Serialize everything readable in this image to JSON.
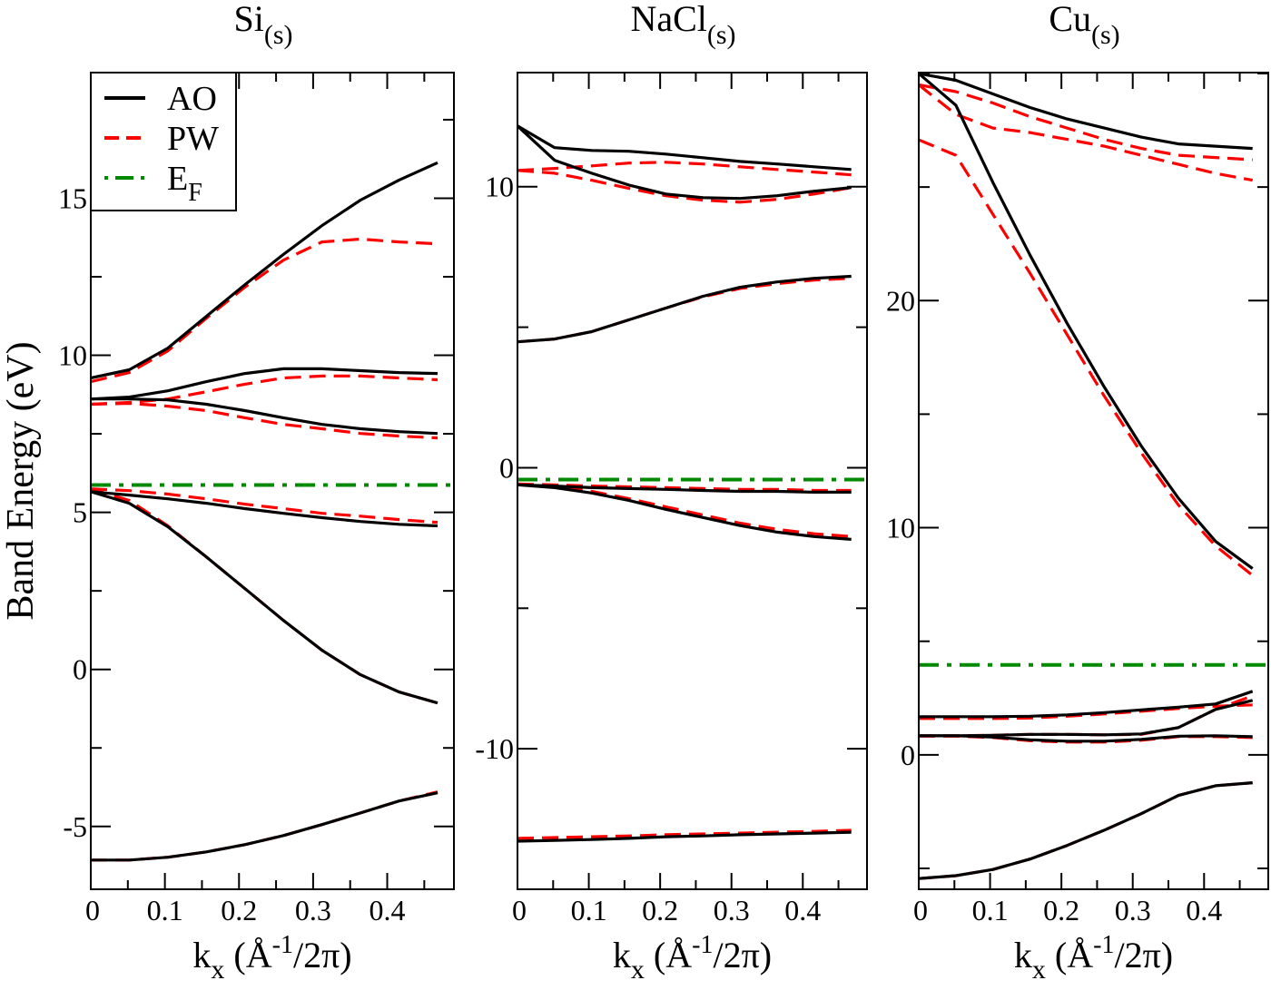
{
  "legend": {
    "entries": [
      {
        "label": "AO",
        "color": "#000000",
        "style": "solid"
      },
      {
        "label": "PW",
        "color": "#ff0000",
        "style": "dashed"
      },
      {
        "label": "E",
        "sub": "F",
        "color": "#008a00",
        "style": "dash-dot-dot"
      }
    ],
    "placement": "top-left of first panel"
  },
  "ylabel": "Band Energy (eV)",
  "chart_data": [
    {
      "type": "line",
      "title": "Si",
      "title_sub": "(s)",
      "xlabel": {
        "main": "k",
        "sub": "x",
        "pre": " (Å",
        "sup": "-1",
        "post": "/2π)"
      },
      "xlim": [
        0,
        0.49
      ],
      "ylim": [
        -7,
        19
      ],
      "xticks": [
        0,
        0.1,
        0.2,
        0.3,
        0.4
      ],
      "xtick_labels": [
        "0",
        "0.1",
        "0.2",
        "0.3",
        "0.4"
      ],
      "xminor": 0.05,
      "yticks": [
        -5,
        0,
        5,
        10,
        15
      ],
      "ytick_labels": [
        "-5",
        "0",
        "5",
        "10",
        "15"
      ],
      "yminor": 2.5,
      "x": [
        0,
        0.052,
        0.104,
        0.156,
        0.208,
        0.26,
        0.312,
        0.364,
        0.416,
        0.468
      ],
      "fermi": 5.87,
      "series": [
        {
          "name": "AO",
          "bands": [
            [
              9.28,
              9.54,
              10.23,
              11.24,
              12.25,
              13.21,
              14.13,
              14.94,
              15.58,
              16.13
            ],
            [
              8.61,
              8.67,
              8.87,
              9.16,
              9.42,
              9.57,
              9.57,
              9.51,
              9.45,
              9.42
            ],
            [
              8.61,
              8.61,
              8.58,
              8.44,
              8.24,
              8.01,
              7.8,
              7.66,
              7.57,
              7.51
            ],
            [
              5.66,
              5.55,
              5.43,
              5.29,
              5.12,
              4.97,
              4.83,
              4.71,
              4.62,
              4.57
            ],
            [
              5.66,
              5.29,
              4.54,
              3.58,
              2.57,
              1.56,
              0.61,
              -0.17,
              -0.72,
              -1.07
            ],
            [
              -6.07,
              -6.07,
              -5.98,
              -5.81,
              -5.58,
              -5.29,
              -4.94,
              -4.57,
              -4.19,
              -3.93
            ]
          ]
        },
        {
          "name": "PW",
          "bands": [
            [
              9.16,
              9.45,
              10.14,
              11.18,
              12.17,
              13.03,
              13.61,
              13.7,
              13.61,
              13.55
            ],
            [
              8.44,
              8.5,
              8.61,
              8.84,
              9.08,
              9.28,
              9.34,
              9.34,
              9.28,
              9.22
            ],
            [
              8.44,
              8.47,
              8.38,
              8.24,
              8.01,
              7.8,
              7.66,
              7.51,
              7.43,
              7.37
            ],
            [
              5.75,
              5.69,
              5.58,
              5.43,
              5.26,
              5.12,
              4.97,
              4.88,
              4.77,
              4.68
            ],
            [
              5.75,
              5.38,
              4.57,
              3.58,
              2.57,
              1.56,
              0.61,
              -0.17,
              -0.72,
              -1.07
            ],
            [
              -6.07,
              -6.07,
              -5.98,
              -5.81,
              -5.58,
              -5.29,
              -4.94,
              -4.57,
              -4.19,
              -3.9
            ]
          ]
        }
      ]
    },
    {
      "type": "line",
      "title": "NaCl",
      "title_sub": "(s)",
      "xlabel": {
        "main": "k",
        "sub": "x",
        "pre": " (Å",
        "sup": "-1",
        "post": "/2π)"
      },
      "xlim": [
        0,
        0.49
      ],
      "ylim": [
        -15,
        14.06
      ],
      "xticks": [
        0,
        0.1,
        0.2,
        0.3,
        0.4
      ],
      "xtick_labels": [
        "0",
        "0.1",
        "0.2",
        "0.3",
        "0.4"
      ],
      "xminor": 0.05,
      "yticks": [
        -10,
        0,
        10
      ],
      "ytick_labels": [
        "-10",
        "0",
        "10"
      ],
      "yminor": 5,
      "x": [
        0,
        0.052,
        0.104,
        0.156,
        0.208,
        0.26,
        0.312,
        0.364,
        0.416,
        0.468
      ],
      "fermi": -0.42,
      "series": [
        {
          "name": "AO",
          "bands": [
            [
              12.16,
              11.39,
              11.29,
              11.26,
              11.16,
              11.03,
              10.9,
              10.81,
              10.71,
              10.61
            ],
            [
              12.16,
              10.94,
              10.48,
              10.06,
              9.74,
              9.61,
              9.58,
              9.68,
              9.84,
              9.97
            ],
            [
              4.48,
              4.58,
              4.84,
              5.26,
              5.68,
              6.1,
              6.42,
              6.61,
              6.74,
              6.81
            ],
            [
              -0.61,
              -0.65,
              -0.71,
              -0.74,
              -0.77,
              -0.81,
              -0.84,
              -0.84,
              -0.87,
              -0.87
            ],
            [
              -0.61,
              -0.71,
              -0.9,
              -1.16,
              -1.48,
              -1.77,
              -2.06,
              -2.29,
              -2.45,
              -2.55
            ],
            [
              -13.29,
              -13.26,
              -13.23,
              -13.19,
              -13.13,
              -13.1,
              -13.06,
              -13.03,
              -13.0,
              -12.97
            ]
          ]
        },
        {
          "name": "PW",
          "bands": [
            [
              10.58,
              10.65,
              10.74,
              10.84,
              10.87,
              10.81,
              10.71,
              10.61,
              10.52,
              10.42
            ],
            [
              10.58,
              10.48,
              10.23,
              9.94,
              9.68,
              9.52,
              9.45,
              9.55,
              9.74,
              9.97
            ],
            [
              4.48,
              4.58,
              4.84,
              5.26,
              5.68,
              6.08,
              6.38,
              6.55,
              6.68,
              6.74
            ],
            [
              -0.58,
              -0.61,
              -0.65,
              -0.68,
              -0.71,
              -0.74,
              -0.77,
              -0.77,
              -0.81,
              -0.81
            ],
            [
              -0.58,
              -0.68,
              -0.84,
              -1.1,
              -1.39,
              -1.68,
              -1.97,
              -2.19,
              -2.35,
              -2.45
            ],
            [
              -13.19,
              -13.16,
              -13.13,
              -13.1,
              -13.06,
              -13.03,
              -13.0,
              -12.97,
              -12.94,
              -12.9
            ]
          ]
        }
      ]
    },
    {
      "type": "line",
      "title": "Cu",
      "title_sub": "(s)",
      "xlabel": {
        "main": "k",
        "sub": "x",
        "pre": " (Å",
        "sup": "-1",
        "post": "/2π)"
      },
      "xlim": [
        0,
        0.49
      ],
      "ylim": [
        -5.92,
        30.04
      ],
      "xticks": [
        0,
        0.1,
        0.2,
        0.3,
        0.4
      ],
      "xtick_labels": [
        "0",
        "0.1",
        "0.2",
        "0.3",
        "0.4"
      ],
      "xminor": 0.05,
      "yticks": [
        0,
        10,
        20
      ],
      "ytick_labels": [
        "0",
        "10",
        "20"
      ],
      "yminor": 5,
      "x": [
        0,
        0.052,
        0.104,
        0.156,
        0.208,
        0.26,
        0.312,
        0.364,
        0.416,
        0.468
      ],
      "fermi": 3.96,
      "series": [
        {
          "name": "AO",
          "bands": [
            [
              30.0,
              29.7,
              29.1,
              28.5,
              28.0,
              27.6,
              27.2,
              26.9,
              26.8,
              26.7
            ],
            [
              30.0,
              28.6,
              25.2,
              22.0,
              19.0,
              16.2,
              13.6,
              11.3,
              9.4,
              8.2
            ],
            [
              1.68,
              1.68,
              1.68,
              1.7,
              1.76,
              1.86,
              1.98,
              2.1,
              2.24,
              2.8
            ],
            [
              0.84,
              0.84,
              0.86,
              0.9,
              0.9,
              0.88,
              0.92,
              1.2,
              2.0,
              2.4
            ],
            [
              0.84,
              0.84,
              0.78,
              0.66,
              0.6,
              0.6,
              0.68,
              0.82,
              0.84,
              0.8
            ],
            [
              -5.45,
              -5.32,
              -5.05,
              -4.59,
              -3.99,
              -3.32,
              -2.59,
              -1.79,
              -1.36,
              -1.23
            ]
          ]
        },
        {
          "name": "PW",
          "bands": [
            [
              29.5,
              29.2,
              28.7,
              28.1,
              27.6,
              27.1,
              26.7,
              26.4,
              26.3,
              26.2
            ],
            [
              29.5,
              28.2,
              27.6,
              27.4,
              27.1,
              26.8,
              26.4,
              26.0,
              25.6,
              25.3
            ],
            [
              27.08,
              26.4,
              23.8,
              21.2,
              18.5,
              15.8,
              13.3,
              11.0,
              9.2,
              7.9
            ],
            [
              1.6,
              1.6,
              1.6,
              1.62,
              1.7,
              1.8,
              1.92,
              2.04,
              2.14,
              2.2
            ],
            [
              0.84,
              0.84,
              0.86,
              0.9,
              0.9,
              0.88,
              0.9,
              1.2,
              2.0,
              2.6
            ],
            [
              0.82,
              0.82,
              0.76,
              0.62,
              0.56,
              0.56,
              0.64,
              0.8,
              0.8,
              0.76
            ],
            [
              -5.45,
              -5.32,
              -5.05,
              -4.59,
              -3.99,
              -3.32,
              -2.59,
              -1.79,
              -1.36,
              -1.23
            ]
          ]
        }
      ]
    }
  ]
}
